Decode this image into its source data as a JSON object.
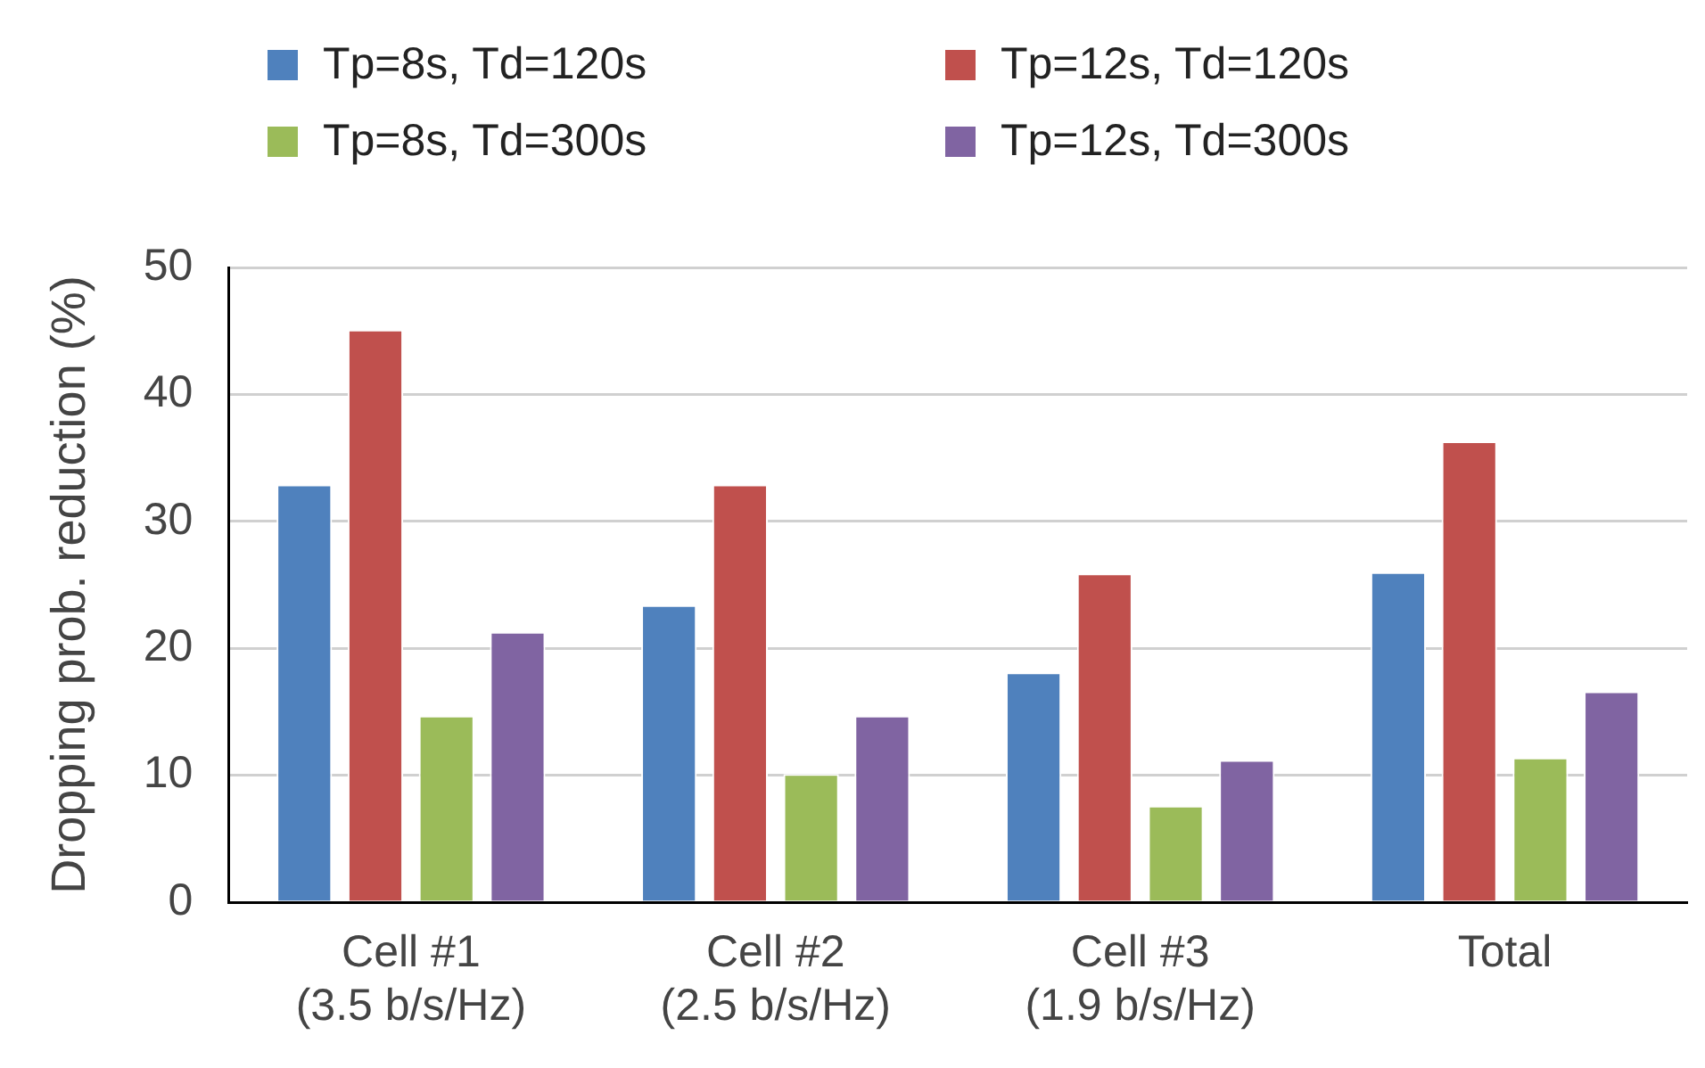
{
  "chart_data": {
    "type": "bar",
    "ylabel": "Dropping prob. reduction (%)",
    "categories": [
      "Cell #1\n(3.5 b/s/Hz)",
      "Cell #2\n(2.5 b/s/Hz)",
      "Cell #3\n(1.9 b/s/Hz)",
      "Total"
    ],
    "series": [
      {
        "name": "Tp=8s, Td=120s",
        "color": "#4f81bd",
        "values": [
          32.9,
          23.4,
          18.1,
          26.0
        ]
      },
      {
        "name": "Tp=12s, Td=120s",
        "color": "#c0504d",
        "values": [
          45.1,
          32.9,
          25.9,
          36.3
        ]
      },
      {
        "name": "Tp=8s, Td=300s",
        "color": "#9bbb59",
        "values": [
          14.7,
          10.1,
          7.6,
          11.4
        ]
      },
      {
        "name": "Tp=12s, Td=300s",
        "color": "#8064a2",
        "values": [
          21.3,
          14.7,
          11.2,
          16.6
        ]
      }
    ],
    "ylim": [
      0,
      50
    ],
    "yticks": [
      0,
      10,
      20,
      30,
      40,
      50
    ],
    "grid": "y",
    "legend": "top"
  }
}
